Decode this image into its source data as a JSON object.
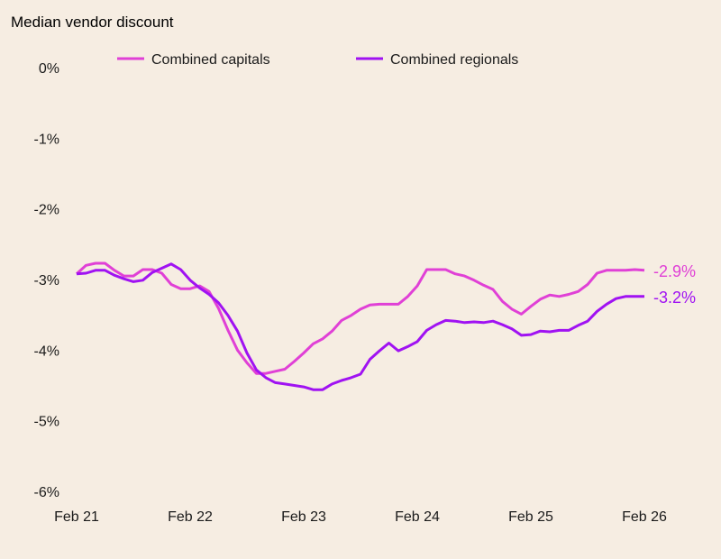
{
  "chart_data": {
    "type": "line",
    "title": "Median vendor discount",
    "xlabel": "",
    "ylabel": "",
    "ylim": [
      -6,
      0
    ],
    "yticks": [
      "0%",
      "-1%",
      "-2%",
      "-3%",
      "-4%",
      "-5%",
      "-6%"
    ],
    "ytick_values": [
      0,
      -1,
      -2,
      -3,
      -4,
      -5,
      -6
    ],
    "xticks": [
      "Feb 21",
      "Feb 22",
      "Feb 23",
      "Feb 24",
      "Feb 25",
      "Feb 26"
    ],
    "xtick_values": [
      "2021-02",
      "2022-02",
      "2023-02",
      "2024-02",
      "2025-02",
      "2026-02"
    ],
    "grid": false,
    "legend_position": "top",
    "x": [
      "2021-02",
      "2021-03",
      "2021-04",
      "2021-05",
      "2021-06",
      "2021-07",
      "2021-08",
      "2021-09",
      "2021-10",
      "2021-11",
      "2021-12",
      "2022-01",
      "2022-02",
      "2022-03",
      "2022-04",
      "2022-05",
      "2022-06",
      "2022-07",
      "2022-08",
      "2022-09",
      "2022-10",
      "2022-11",
      "2022-12",
      "2023-01",
      "2023-02",
      "2023-03",
      "2023-04",
      "2023-05",
      "2023-06",
      "2023-07",
      "2023-08",
      "2023-09",
      "2023-10",
      "2023-11",
      "2023-12",
      "2024-01",
      "2024-02",
      "2024-03",
      "2024-04",
      "2024-05",
      "2024-06",
      "2024-07",
      "2024-08",
      "2024-09",
      "2024-10",
      "2024-11",
      "2024-12",
      "2025-01",
      "2025-02",
      "2025-03",
      "2025-04",
      "2025-05",
      "2025-06",
      "2025-07",
      "2025-08",
      "2025-09",
      "2025-10",
      "2025-11",
      "2025-12",
      "2026-01",
      "2026-02"
    ],
    "series": [
      {
        "name": "Combined capitals",
        "color": "#e040d6",
        "end_label": "-2.9%",
        "values": [
          -2.92,
          -2.8,
          -2.77,
          -2.77,
          -2.87,
          -2.95,
          -2.95,
          -2.86,
          -2.86,
          -2.91,
          -3.07,
          -3.13,
          -3.13,
          -3.09,
          -3.17,
          -3.41,
          -3.72,
          -4.0,
          -4.18,
          -4.33,
          -4.33,
          -4.3,
          -4.27,
          -4.16,
          -4.04,
          -3.91,
          -3.84,
          -3.73,
          -3.58,
          -3.51,
          -3.42,
          -3.36,
          -3.35,
          -3.35,
          -3.35,
          -3.24,
          -3.09,
          -2.86,
          -2.86,
          -2.86,
          -2.92,
          -2.95,
          -3.01,
          -3.08,
          -3.14,
          -3.31,
          -3.42,
          -3.49,
          -3.38,
          -3.28,
          -3.22,
          -3.24,
          -3.21,
          -3.17,
          -3.07,
          -2.91,
          -2.87,
          -2.87,
          -2.87,
          -2.86,
          -2.87
        ]
      },
      {
        "name": "Combined regionals",
        "color": "#a012f2",
        "end_label": "-3.2%",
        "values": [
          -2.92,
          -2.91,
          -2.87,
          -2.87,
          -2.94,
          -2.99,
          -3.03,
          -3.01,
          -2.9,
          -2.84,
          -2.78,
          -2.86,
          -3.01,
          -3.12,
          -3.21,
          -3.33,
          -3.51,
          -3.73,
          -4.04,
          -4.28,
          -4.39,
          -4.46,
          -4.48,
          -4.5,
          -4.52,
          -4.56,
          -4.56,
          -4.48,
          -4.43,
          -4.39,
          -4.34,
          -4.13,
          -4.01,
          -3.9,
          -4.01,
          -3.95,
          -3.88,
          -3.72,
          -3.64,
          -3.58,
          -3.59,
          -3.61,
          -3.6,
          -3.61,
          -3.59,
          -3.64,
          -3.7,
          -3.79,
          -3.78,
          -3.73,
          -3.74,
          -3.72,
          -3.72,
          -3.65,
          -3.59,
          -3.45,
          -3.35,
          -3.27,
          -3.24,
          -3.24,
          -3.24
        ]
      }
    ]
  }
}
